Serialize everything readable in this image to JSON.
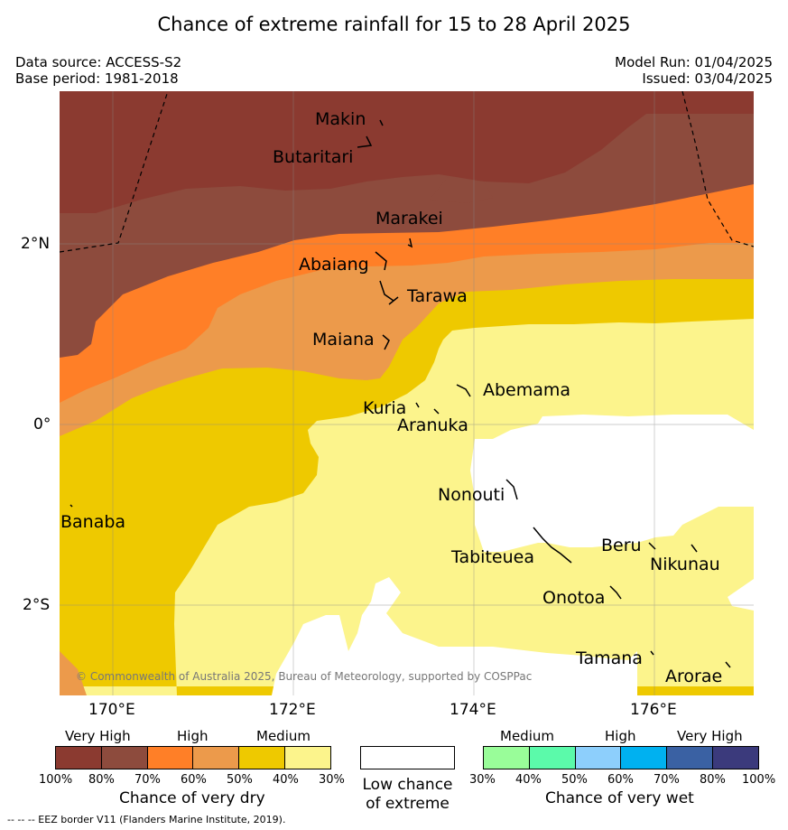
{
  "title": "Chance of extreme rainfall for 15 to 28 April 2025",
  "meta": {
    "data_source": "Data source: ACCESS-S2",
    "base_period": "Base period: 1981-2018",
    "model_run": "Model Run: 01/04/2025",
    "issued": "Issued: 03/04/2025"
  },
  "map": {
    "lat_labels": [
      "2°N",
      "0°",
      "2°S"
    ],
    "lon_labels": [
      "170°E",
      "172°E",
      "174°E",
      "176°E"
    ],
    "islands": [
      "Makin",
      "Butaritari",
      "Marakei",
      "Abaiang",
      "Tarawa",
      "Maiana",
      "Abemama",
      "Kuria",
      "Aranuka",
      "Nonouti",
      "Banaba",
      "Tabiteuea",
      "Beru",
      "Nikunau",
      "Onotoa",
      "Tamana",
      "Arorae"
    ],
    "copyright": "© Commonwealth of Australia 2025, Bureau of Meteorology, supported by COSPPac",
    "zone_colors": {
      "dry_very_high_dark": "#8b3a30",
      "dry_very_high": "#8d4b3d",
      "dry_high": "#ff7f27",
      "dry_high_light": "#ec9a4b",
      "dry_medium": "#eec900",
      "dry_medium_light": "#fcf48c",
      "low_chance": "#ffffff"
    }
  },
  "legend": {
    "dry": {
      "categories": [
        "Very High",
        "High",
        "Medium"
      ],
      "ticks": [
        "100%",
        "80%",
        "70%",
        "60%",
        "50%",
        "40%",
        "30%"
      ],
      "title": "Chance of very dry",
      "colors": [
        "#8b3a30",
        "#8d4b3d",
        "#ff7f27",
        "#ec9a4b",
        "#eec900",
        "#fcf48c"
      ]
    },
    "low": {
      "line1": "Low chance",
      "line2": "of extreme"
    },
    "wet": {
      "categories": [
        "Medium",
        "High",
        "Very High"
      ],
      "ticks": [
        "30%",
        "40%",
        "50%",
        "60%",
        "70%",
        "80%",
        "100%"
      ],
      "title": "Chance of very wet",
      "colors": [
        "#99fd99",
        "#5bfaaa",
        "#8dcffc",
        "#00b1f0",
        "#3a61a3",
        "#3b3a7c"
      ]
    }
  },
  "eez_note": "--  --  -- EEZ border V11 (Flanders Marine Institute, 2019)."
}
